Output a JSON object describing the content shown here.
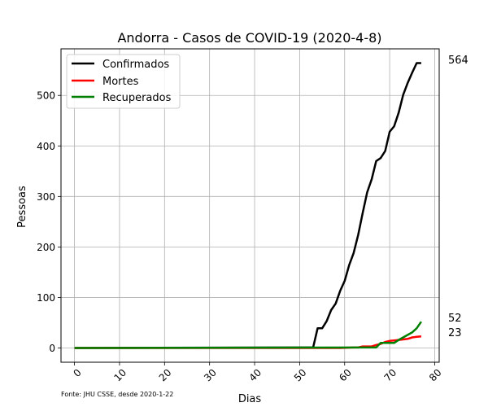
{
  "chart_data": {
    "type": "line",
    "title": "Andorra - Casos de COVID-19 (2020-4-8)",
    "xlabel": "Dias",
    "ylabel": "Pessoas",
    "xlim": [
      -3,
      81
    ],
    "ylim": [
      -28.2,
      592.2
    ],
    "xticks": [
      0,
      10,
      20,
      30,
      40,
      50,
      60,
      70,
      80
    ],
    "yticks": [
      0,
      100,
      200,
      300,
      400,
      500
    ],
    "grid": true,
    "legend": "top-left",
    "source_note": "Fonte: JHU CSSE, desde 2020-1-22",
    "end_labels": [
      "564",
      "52",
      "23"
    ],
    "series": [
      {
        "name": "Confirmados",
        "color": "#000000",
        "x": [
          0,
          53,
          54,
          55,
          56,
          57,
          58,
          59,
          60,
          61,
          62,
          63,
          64,
          65,
          66,
          67,
          68,
          69,
          70,
          71,
          72,
          73,
          74,
          75,
          76,
          77
        ],
        "y": [
          0,
          1,
          39,
          39,
          53,
          75,
          88,
          113,
          133,
          164,
          188,
          224,
          267,
          308,
          334,
          370,
          376,
          390,
          428,
          439,
          466,
          501,
          525,
          545,
          564,
          564
        ]
      },
      {
        "name": "Mortes",
        "color": "#ff0000",
        "x": [
          0,
          59,
          62,
          63,
          64,
          65,
          66,
          67,
          68,
          69,
          70,
          71,
          72,
          73,
          74,
          75,
          76,
          77
        ],
        "y": [
          0,
          0,
          1,
          1,
          3,
          3,
          3,
          6,
          8,
          12,
          14,
          15,
          16,
          17,
          18,
          21,
          22,
          23
        ]
      },
      {
        "name": "Recuperados",
        "color": "#008000",
        "x": [
          0,
          66,
          67,
          68,
          69,
          70,
          71,
          72,
          73,
          74,
          75,
          76,
          77
        ],
        "y": [
          0,
          1,
          1,
          10,
          10,
          10,
          10,
          16,
          21,
          26,
          31,
          39,
          52
        ]
      }
    ]
  }
}
